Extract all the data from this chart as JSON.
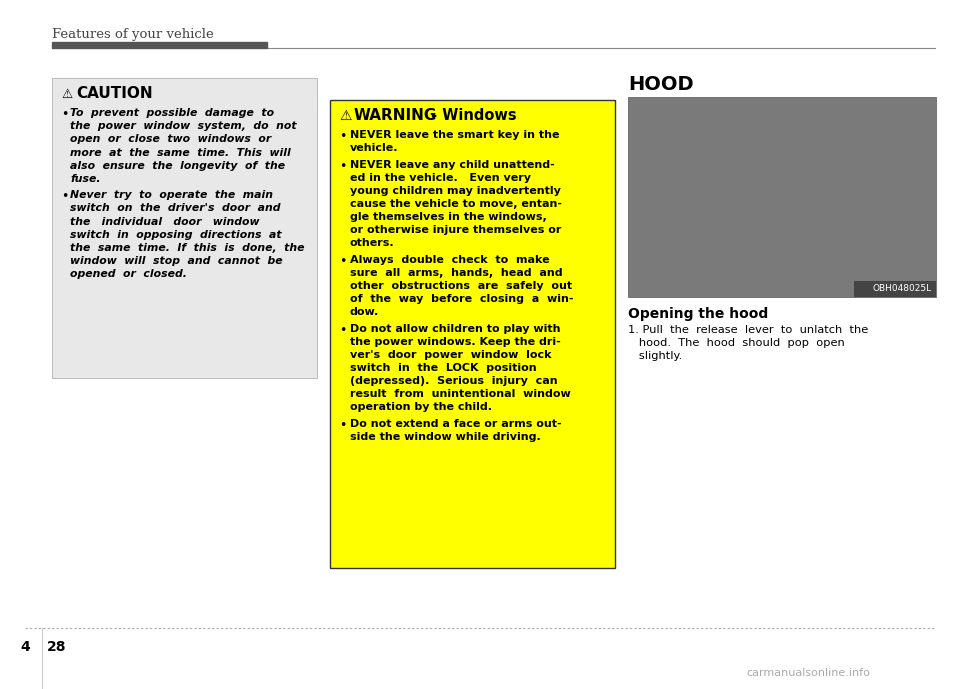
{
  "page_title": "Features of your vehicle",
  "page_num_left": "4",
  "page_num_right": "28",
  "bg_color": "#ffffff",
  "header_bar_color": "#555555",
  "header_line_color": "#888888",
  "caution_box": {
    "bg_color": "#e8e8e8",
    "border_color": "#bbbbbb",
    "title": "CAUTION",
    "item1_lines": [
      "To  prevent  possible  damage  to",
      "the  power  window  system,  do  not",
      "open  or  close  two  windows  or",
      "more  at  the  same  time.  This  will",
      "also  ensure  the  longevity  of  the",
      "fuse."
    ],
    "item2_lines": [
      "Never  try  to  operate  the  main",
      "switch  on  the  driver's  door  and",
      "the   individual   door   window",
      "switch  in  opposing  directions  at",
      "the  same  time.  If  this  is  done,  the",
      "window  will  stop  and  cannot  be",
      "opened  or  closed."
    ]
  },
  "warning_box": {
    "bg_color": "#ffff00",
    "border_color": "#333333",
    "title": "WARNING",
    "subtitle": " - Windows",
    "item1_lines": [
      "NEVER leave the smart key in the",
      "vehicle."
    ],
    "item2_lines": [
      "NEVER leave any child unattend-",
      "ed in the vehicle.   Even very",
      "young children may inadvertently",
      "cause the vehicle to move, entan-",
      "gle themselves in the windows,",
      "or otherwise injure themselves or",
      "others."
    ],
    "item3_lines": [
      "Always  double  check  to  make",
      "sure  all  arms,  hands,  head  and",
      "other  obstructions  are  safely  out",
      "of  the  way  before  closing  a  win-",
      "dow."
    ],
    "item4_lines": [
      "Do not allow children to play with",
      "the power windows. Keep the dri-",
      "ver's  door  power  window  lock",
      "switch  in  the  LOCK  position",
      "(depressed).  Serious  injury  can",
      "result  from  unintentional  window",
      "operation by the child."
    ],
    "item5_lines": [
      "Do not extend a face or arms out-",
      "side the window while driving."
    ]
  },
  "hood_section": {
    "title": "HOOD",
    "image_label": "OBH048025L",
    "subheading": "Opening the hood",
    "step1_lines": [
      "1. Pull  the  release  lever  to  unlatch  the",
      "   hood.  The  hood  should  pop  open",
      "   slightly."
    ]
  },
  "footer_line_color": "#aaaaaa",
  "watermark": "carmanualsonline.info"
}
